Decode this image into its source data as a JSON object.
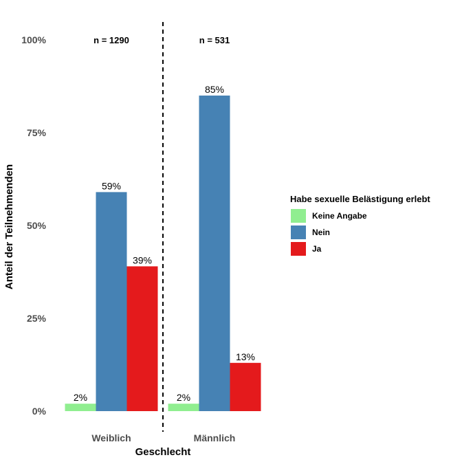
{
  "chart_data": {
    "type": "bar",
    "xlabel": "Geschlecht",
    "ylabel": "Anteil der Teilnehmenden",
    "ylim": [
      0,
      100
    ],
    "y_ticks": [
      "0%",
      "25%",
      "50%",
      "75%",
      "100%"
    ],
    "y_tick_values": [
      0,
      25,
      50,
      75,
      100
    ],
    "categories": [
      "Weiblich",
      "Männlich"
    ],
    "series": [
      {
        "name": "Keine Angabe",
        "values": [
          2,
          2
        ],
        "labels": [
          "2%",
          "2%"
        ],
        "color": "#90EE90"
      },
      {
        "name": "Nein",
        "values": [
          59,
          85
        ],
        "labels": [
          "59%",
          "85%"
        ],
        "color": "#4682B4"
      },
      {
        "name": "Ja",
        "values": [
          39,
          13
        ],
        "labels": [
          "39%",
          "13%"
        ],
        "color": "#E41A1C"
      }
    ],
    "annotations": [
      "n = 1290",
      "n = 531"
    ],
    "legend": {
      "title": "Habe sexuelle Belästigung erlebt",
      "position": "right"
    },
    "separator": "dashed vertical line between groups",
    "grid": false
  }
}
